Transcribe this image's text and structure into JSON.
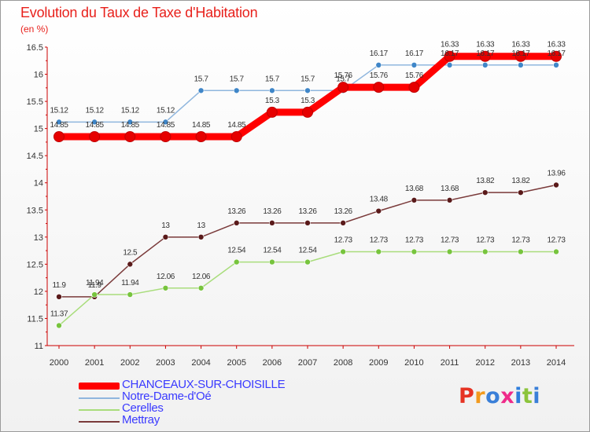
{
  "header": {
    "title": "Evolution du Taux de Taxe d'Habitation",
    "unit": "(en %)"
  },
  "logo": {
    "text": "Proxiti",
    "colors": [
      "#e63323",
      "#f29a1e",
      "#3a7fd8",
      "#ef2b8a",
      "#2e7ddc",
      "#8cc43c",
      "#3a7fd8"
    ]
  },
  "chart_data": {
    "type": "line",
    "x": [
      2000,
      2001,
      2002,
      2003,
      2004,
      2005,
      2006,
      2007,
      2008,
      2009,
      2010,
      2011,
      2012,
      2013,
      2014
    ],
    "ylim": [
      11,
      16.5
    ],
    "yticks": [
      11,
      11.5,
      12,
      12.5,
      13,
      13.5,
      14,
      14.5,
      15,
      15.5,
      16,
      16.5
    ],
    "grid": false,
    "legend": "bottom-left",
    "series": [
      {
        "name": "CHANCEAUX-SUR-CHOISILLE",
        "color": "#ff0000",
        "marker": "#e00000",
        "values": [
          14.85,
          14.85,
          14.85,
          14.85,
          14.85,
          14.85,
          15.3,
          15.3,
          15.76,
          15.76,
          15.76,
          16.33,
          16.33,
          16.33,
          16.33
        ]
      },
      {
        "name": "Notre-Dame-d'Oé",
        "color": "#8fb6de",
        "marker": "#3f86c8",
        "values": [
          15.12,
          15.12,
          15.12,
          15.12,
          15.7,
          15.7,
          15.7,
          15.7,
          15.7,
          16.17,
          16.17,
          16.17,
          16.17,
          16.17,
          16.17
        ]
      },
      {
        "name": "Cerelles",
        "color": "#a9dd7c",
        "marker": "#77c43d",
        "values": [
          11.37,
          11.94,
          11.94,
          12.06,
          12.06,
          12.54,
          12.54,
          12.54,
          12.73,
          12.73,
          12.73,
          12.73,
          12.73,
          12.73,
          12.73
        ]
      },
      {
        "name": "Mettray",
        "color": "#7a3a3a",
        "marker": "#5a1a1a",
        "values": [
          11.9,
          11.9,
          12.5,
          13,
          13,
          13.26,
          13.26,
          13.26,
          13.26,
          13.48,
          13.68,
          13.68,
          13.82,
          13.82,
          13.96
        ]
      }
    ]
  }
}
